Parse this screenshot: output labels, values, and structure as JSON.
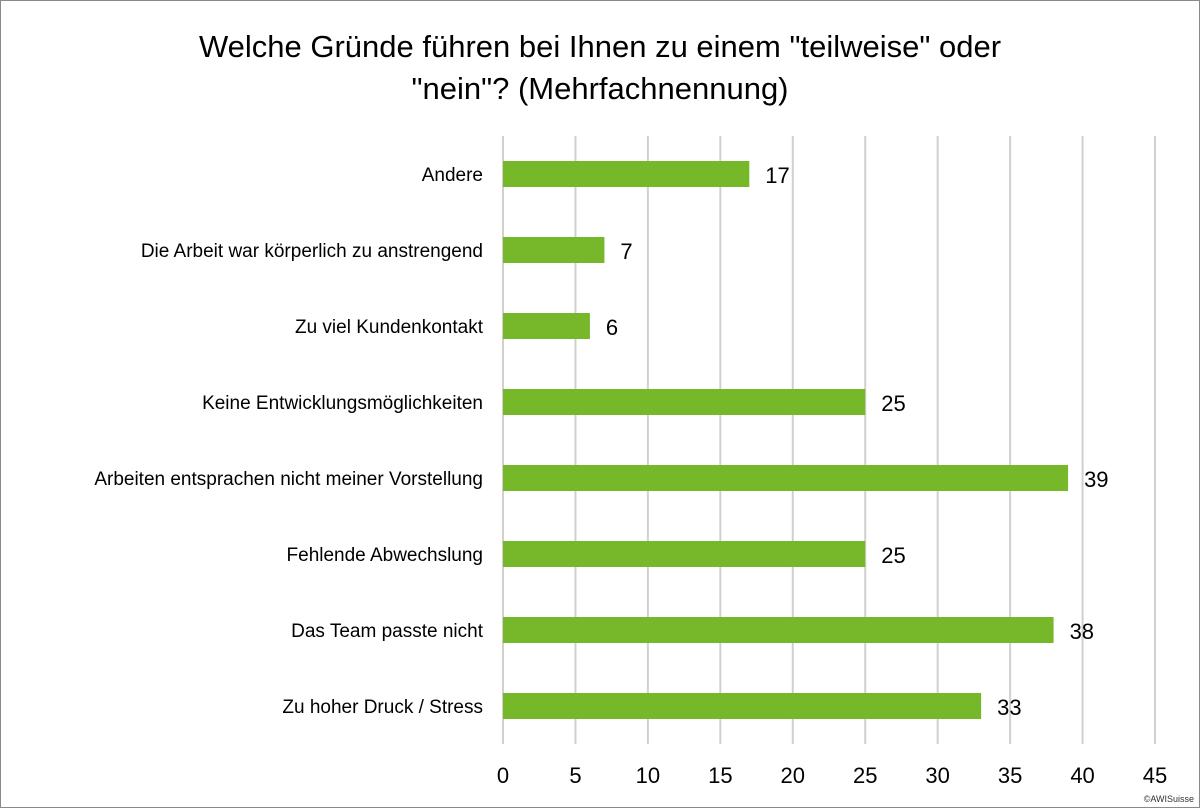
{
  "chart_data": {
    "type": "bar",
    "orientation": "horizontal",
    "title_lines": [
      "Welche Gründe führen bei Ihnen zu einem \"teilweise\" oder",
      "\"nein\"? (Mehrfachnennung)"
    ],
    "categories": [
      "Andere",
      "Die Arbeit war körperlich zu anstrengend",
      "Zu viel Kundenkontakt",
      "Keine Entwicklungsmöglichkeiten",
      "Arbeiten entsprachen nicht meiner Vorstellung",
      "Fehlende Abwechslung",
      "Das Team passte nicht",
      "Zu hoher Druck / Stress"
    ],
    "values": [
      17,
      7,
      6,
      25,
      39,
      25,
      38,
      33
    ],
    "xlim": [
      0,
      45
    ],
    "x_ticks": [
      0,
      5,
      10,
      15,
      20,
      25,
      30,
      35,
      40,
      45
    ],
    "grid": "vertical",
    "bar_color": "#77b82a",
    "grid_color": "#d0d0d0",
    "data_labels": true
  },
  "footer": {
    "copyright": "©AWISuisse"
  }
}
